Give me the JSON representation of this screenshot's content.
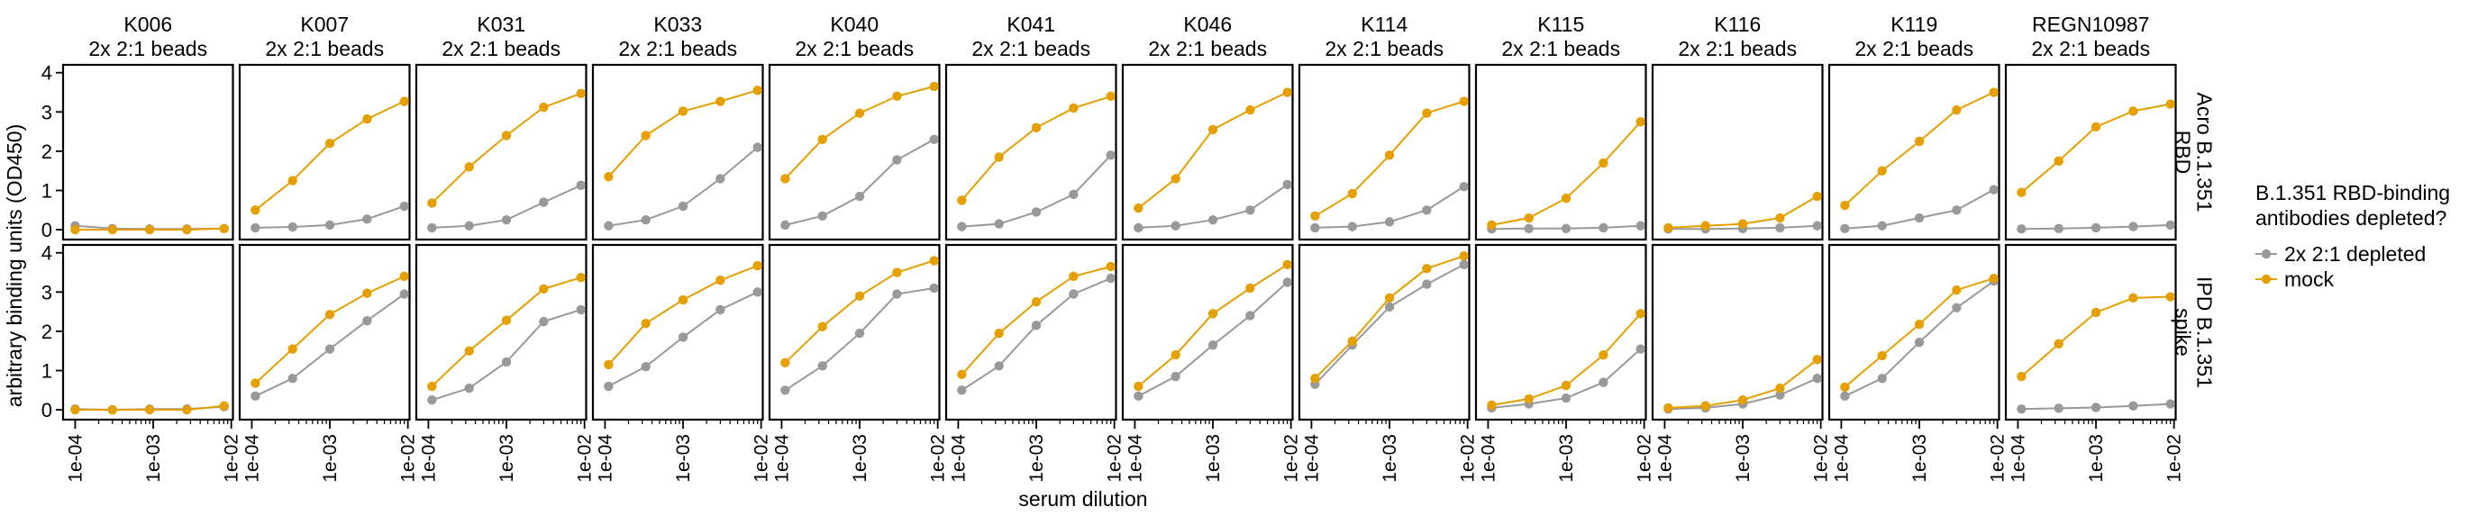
{
  "chart_data": {
    "type": "line",
    "title": "",
    "xlabel": "serum dilution",
    "ylabel": "arbitrary binding units (OD450)",
    "x_scale": "log10",
    "xlim": [
      7e-05,
      0.0105
    ],
    "ylim": [
      -0.25,
      4.2
    ],
    "x_ticks": [
      0.0001,
      0.001,
      0.01
    ],
    "x_tick_labels": [
      "1e-04",
      "1e-03",
      "1e-02"
    ],
    "y_ticks": [
      0,
      1,
      2,
      3,
      4
    ],
    "y_tick_labels": [
      "0",
      "1",
      "2",
      "3",
      "4"
    ],
    "x": [
      0.0001111,
      0.0003333,
      0.001,
      0.003,
      0.009
    ],
    "legend": {
      "title_line1": "B.1.351 RBD-binding",
      "title_line2": "antibodies depleted?",
      "placement": "right",
      "entries": [
        {
          "key": "depleted",
          "label": "2x 2:1 depleted",
          "color": "#999999"
        },
        {
          "key": "mock",
          "label": "mock",
          "color": "#E69F00"
        }
      ]
    },
    "rows": [
      {
        "key": "rbd",
        "label_line1": "Acro B.1.351",
        "label_line2": "RBD"
      },
      {
        "key": "spike",
        "label_line1": "IPD B.1.351",
        "label_line2": "spike"
      }
    ],
    "panels": [
      {
        "name": "K006",
        "subtitle": "2x 2:1 beads",
        "x": [
          0.0001,
          0.0003,
          0.0009,
          0.0027,
          0.0081
        ],
        "rbd": {
          "depleted": [
            0.1,
            0.03,
            0.02,
            0.02,
            0.03
          ],
          "mock": [
            0.0,
            0.0,
            0.0,
            0.0,
            0.03
          ]
        },
        "spike": {
          "depleted": [
            0.02,
            0.0,
            0.02,
            0.02,
            0.08
          ],
          "mock": [
            0.0,
            0.0,
            0.0,
            0.0,
            0.1
          ]
        }
      },
      {
        "name": "K007",
        "subtitle": "2x 2:1 beads",
        "rbd": {
          "depleted": [
            0.05,
            0.07,
            0.12,
            0.27,
            0.6
          ],
          "mock": [
            0.5,
            1.25,
            2.2,
            2.82,
            3.27
          ]
        },
        "spike": {
          "depleted": [
            0.35,
            0.8,
            1.55,
            2.27,
            2.95
          ],
          "mock": [
            0.68,
            1.55,
            2.43,
            2.97,
            3.4
          ]
        }
      },
      {
        "name": "K031",
        "subtitle": "2x 2:1 beads",
        "rbd": {
          "depleted": [
            0.05,
            0.1,
            0.25,
            0.7,
            1.13
          ],
          "mock": [
            0.68,
            1.6,
            2.4,
            3.12,
            3.47
          ]
        },
        "spike": {
          "depleted": [
            0.25,
            0.55,
            1.22,
            2.25,
            2.55
          ],
          "mock": [
            0.6,
            1.5,
            2.28,
            3.08,
            3.37
          ]
        }
      },
      {
        "name": "K033",
        "subtitle": "2x 2:1 beads",
        "rbd": {
          "depleted": [
            0.1,
            0.25,
            0.6,
            1.3,
            2.1
          ],
          "mock": [
            1.35,
            2.4,
            3.02,
            3.27,
            3.55
          ]
        },
        "spike": {
          "depleted": [
            0.6,
            1.1,
            1.85,
            2.55,
            3.0
          ],
          "mock": [
            1.15,
            2.2,
            2.8,
            3.3,
            3.67
          ]
        }
      },
      {
        "name": "K040",
        "subtitle": "2x 2:1 beads",
        "rbd": {
          "depleted": [
            0.12,
            0.35,
            0.85,
            1.78,
            2.3
          ],
          "mock": [
            1.3,
            2.3,
            2.97,
            3.4,
            3.65
          ]
        },
        "spike": {
          "depleted": [
            0.5,
            1.12,
            1.95,
            2.95,
            3.1
          ],
          "mock": [
            1.2,
            2.12,
            2.9,
            3.5,
            3.8
          ]
        }
      },
      {
        "name": "K041",
        "subtitle": "2x 2:1 beads",
        "rbd": {
          "depleted": [
            0.08,
            0.15,
            0.45,
            0.9,
            1.9
          ],
          "mock": [
            0.75,
            1.85,
            2.6,
            3.1,
            3.4
          ]
        },
        "spike": {
          "depleted": [
            0.5,
            1.12,
            2.15,
            2.95,
            3.35
          ],
          "mock": [
            0.9,
            1.95,
            2.75,
            3.4,
            3.65
          ]
        }
      },
      {
        "name": "K046",
        "subtitle": "2x 2:1 beads",
        "rbd": {
          "depleted": [
            0.05,
            0.1,
            0.25,
            0.5,
            1.15
          ],
          "mock": [
            0.55,
            1.3,
            2.55,
            3.05,
            3.5
          ]
        },
        "spike": {
          "depleted": [
            0.35,
            0.85,
            1.65,
            2.4,
            3.25
          ],
          "mock": [
            0.6,
            1.4,
            2.45,
            3.1,
            3.7
          ]
        }
      },
      {
        "name": "K114",
        "subtitle": "2x 2:1 beads",
        "rbd": {
          "depleted": [
            0.05,
            0.08,
            0.2,
            0.5,
            1.1
          ],
          "mock": [
            0.35,
            0.92,
            1.9,
            2.97,
            3.27
          ]
        },
        "spike": {
          "depleted": [
            0.65,
            1.65,
            2.62,
            3.2,
            3.7
          ],
          "mock": [
            0.8,
            1.75,
            2.85,
            3.6,
            3.92
          ]
        }
      },
      {
        "name": "K115",
        "subtitle": "2x 2:1 beads",
        "rbd": {
          "depleted": [
            0.02,
            0.03,
            0.03,
            0.05,
            0.1
          ],
          "mock": [
            0.12,
            0.3,
            0.8,
            1.7,
            2.75
          ]
        },
        "spike": {
          "depleted": [
            0.05,
            0.15,
            0.3,
            0.7,
            1.55
          ],
          "mock": [
            0.12,
            0.28,
            0.62,
            1.4,
            2.45
          ]
        }
      },
      {
        "name": "K116",
        "subtitle": "2x 2:1 beads",
        "rbd": {
          "depleted": [
            0.02,
            0.02,
            0.03,
            0.05,
            0.1
          ],
          "mock": [
            0.05,
            0.1,
            0.15,
            0.3,
            0.85
          ]
        },
        "spike": {
          "depleted": [
            0.02,
            0.05,
            0.15,
            0.38,
            0.8
          ],
          "mock": [
            0.05,
            0.1,
            0.25,
            0.55,
            1.28
          ]
        }
      },
      {
        "name": "K119",
        "subtitle": "2x 2:1 beads",
        "rbd": {
          "depleted": [
            0.03,
            0.1,
            0.3,
            0.5,
            1.02
          ],
          "mock": [
            0.62,
            1.5,
            2.25,
            3.05,
            3.5
          ]
        },
        "spike": {
          "depleted": [
            0.35,
            0.8,
            1.72,
            2.6,
            3.28
          ],
          "mock": [
            0.58,
            1.38,
            2.18,
            3.05,
            3.35
          ]
        }
      },
      {
        "name": "REGN10987",
        "subtitle": "2x 2:1 beads",
        "rbd": {
          "depleted": [
            0.02,
            0.03,
            0.05,
            0.08,
            0.12
          ],
          "mock": [
            0.95,
            1.75,
            2.62,
            3.02,
            3.2
          ]
        },
        "spike": {
          "depleted": [
            0.02,
            0.04,
            0.06,
            0.1,
            0.15
          ],
          "mock": [
            0.85,
            1.68,
            2.48,
            2.85,
            2.88
          ]
        }
      }
    ]
  }
}
